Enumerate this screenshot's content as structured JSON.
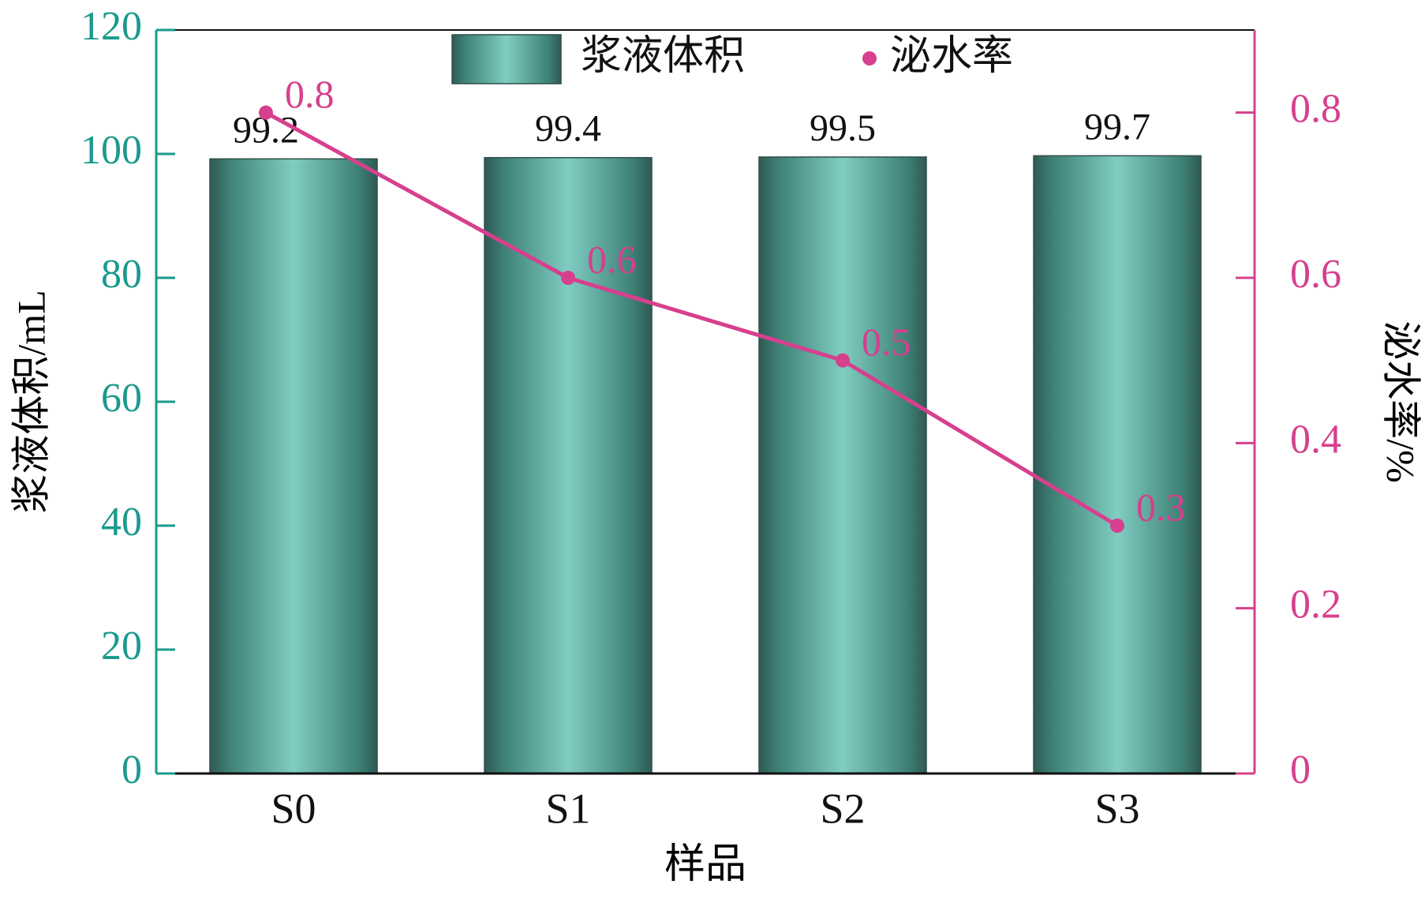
{
  "chart_data": {
    "type": "bar",
    "categories": [
      "S0",
      "S1",
      "S2",
      "S3"
    ],
    "series": [
      {
        "name": "浆液体积",
        "type": "bar",
        "color": "#5fb3a7",
        "values": [
          99.2,
          99.4,
          99.5,
          99.7
        ]
      },
      {
        "name": "泌水率",
        "type": "line",
        "color": "#d6408e",
        "axis": "y2",
        "values": [
          0.8,
          0.6,
          0.5,
          0.3
        ]
      }
    ],
    "xlabel": "样品",
    "ylabel": "浆液体积/mL",
    "y2label": "泌水率/%",
    "ylim": [
      0,
      120
    ],
    "yticks": [
      0,
      20,
      40,
      60,
      80,
      100,
      120
    ],
    "y2lim": [
      0,
      0.9
    ],
    "y2ticks": [
      0,
      0.2,
      0.4,
      0.6,
      0.8
    ],
    "yaxis_color": "#1a9a8c",
    "y2axis_color": "#d6408e",
    "legend": "top"
  }
}
